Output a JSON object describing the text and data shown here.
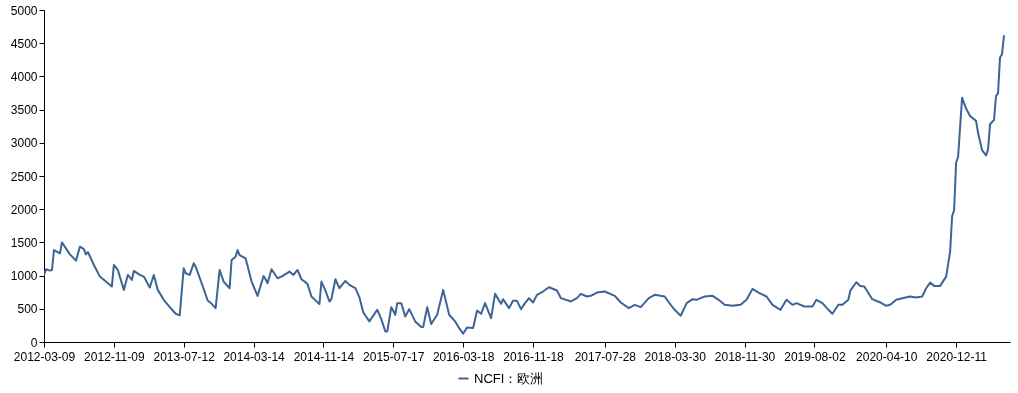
{
  "chart_data": {
    "type": "line",
    "legend": "bottom",
    "x": [
      "2012-03-09",
      "2012-03-16",
      "2012-03-30",
      "2012-04-06",
      "2012-04-13",
      "2012-05-04",
      "2012-05-11",
      "2012-05-25",
      "2012-06-08",
      "2012-06-29",
      "2012-07-13",
      "2012-07-27",
      "2012-08-03",
      "2012-08-10",
      "2012-08-31",
      "2012-09-21",
      "2012-10-12",
      "2012-11-02",
      "2012-11-09",
      "2012-11-23",
      "2012-12-14",
      "2012-12-28",
      "2013-01-11",
      "2013-01-18",
      "2013-02-08",
      "2013-02-22",
      "2013-03-15",
      "2013-03-29",
      "2013-04-12",
      "2013-05-03",
      "2013-05-24",
      "2013-06-14",
      "2013-06-28",
      "2013-07-12",
      "2013-07-19",
      "2013-08-02",
      "2013-08-16",
      "2013-08-23",
      "2013-09-13",
      "2013-10-04",
      "2013-10-18",
      "2013-11-01",
      "2013-11-15",
      "2013-11-29",
      "2013-12-20",
      "2013-12-27",
      "2014-01-10",
      "2014-01-17",
      "2014-01-24",
      "2014-02-14",
      "2014-03-07",
      "2014-03-28",
      "2014-04-18",
      "2014-04-25",
      "2014-05-02",
      "2014-05-16",
      "2014-06-06",
      "2014-06-20",
      "2014-07-18",
      "2014-08-01",
      "2014-08-15",
      "2014-08-29",
      "2014-09-19",
      "2014-10-03",
      "2014-10-31",
      "2014-11-07",
      "2014-11-21",
      "2014-12-05",
      "2014-12-12",
      "2014-12-26",
      "2015-01-09",
      "2015-01-30",
      "2015-02-13",
      "2015-03-06",
      "2015-03-20",
      "2015-04-03",
      "2015-04-24",
      "2015-05-22",
      "2015-06-05",
      "2015-06-19",
      "2015-06-26",
      "2015-07-10",
      "2015-07-24",
      "2015-07-31",
      "2015-08-14",
      "2015-08-28",
      "2015-09-11",
      "2015-10-02",
      "2015-10-23",
      "2015-10-30",
      "2015-11-13",
      "2015-11-27",
      "2015-12-18",
      "2016-01-08",
      "2016-01-29",
      "2016-02-19",
      "2016-03-04",
      "2016-03-18",
      "2016-04-01",
      "2016-04-22",
      "2016-05-06",
      "2016-05-20",
      "2016-06-03",
      "2016-06-24",
      "2016-07-08",
      "2016-07-29",
      "2016-08-05",
      "2016-08-26",
      "2016-09-09",
      "2016-09-23",
      "2016-10-07",
      "2016-10-21",
      "2016-11-04",
      "2016-11-18",
      "2016-12-02",
      "2016-12-23",
      "2017-01-13",
      "2017-02-10",
      "2017-02-24",
      "2017-03-31",
      "2017-04-21",
      "2017-05-05",
      "2017-05-26",
      "2017-06-09",
      "2017-06-30",
      "2017-07-28",
      "2017-09-01",
      "2017-09-22",
      "2017-10-20",
      "2017-11-10",
      "2017-12-01",
      "2017-12-29",
      "2018-01-19",
      "2018-02-23",
      "2018-03-16",
      "2018-03-30",
      "2018-04-20",
      "2018-05-11",
      "2018-06-01",
      "2018-06-15",
      "2018-06-29",
      "2018-07-13",
      "2018-08-10",
      "2018-08-31",
      "2018-09-21",
      "2018-10-19",
      "2018-11-16",
      "2018-12-07",
      "2018-12-28",
      "2019-01-18",
      "2019-02-15",
      "2019-03-08",
      "2019-04-05",
      "2019-04-26",
      "2019-05-17",
      "2019-05-31",
      "2019-06-28",
      "2019-07-26",
      "2019-08-09",
      "2019-08-30",
      "2019-09-20",
      "2019-10-04",
      "2019-10-25",
      "2019-11-08",
      "2019-11-29",
      "2019-12-06",
      "2019-12-27",
      "2020-01-10",
      "2020-01-24",
      "2020-02-21",
      "2020-03-20",
      "2020-04-10",
      "2020-04-24",
      "2020-05-15",
      "2020-06-05",
      "2020-07-03",
      "2020-07-24",
      "2020-08-14",
      "2020-08-28",
      "2020-09-11",
      "2020-09-25",
      "2020-10-16",
      "2020-11-06",
      "2020-11-20",
      "2020-11-27",
      "2020-12-04",
      "2020-12-11",
      "2020-12-18",
      "2021-01-01",
      "2021-01-08",
      "2021-01-15",
      "2021-01-29",
      "2021-02-19",
      "2021-02-26",
      "2021-03-12",
      "2021-03-26",
      "2021-04-02",
      "2021-04-09",
      "2021-04-23",
      "2021-04-30",
      "2021-05-07",
      "2021-05-14",
      "2021-05-21",
      "2021-05-28"
    ],
    "series": [
      {
        "name": "NCFI：欧洲",
        "color": "#3c6496",
        "values": [
          1010,
          1095,
          1075,
          1085,
          1385,
          1335,
          1500,
          1410,
          1320,
          1225,
          1435,
          1400,
          1320,
          1355,
          1160,
          985,
          910,
          835,
          1160,
          1085,
          785,
          1010,
          935,
          1070,
          1010,
          985,
          820,
          1010,
          785,
          635,
          525,
          425,
          400,
          1110,
          1035,
          1010,
          1185,
          1135,
          885,
          625,
          575,
          510,
          1085,
          910,
          810,
          1235,
          1285,
          1385,
          1310,
          1260,
          910,
          695,
          995,
          945,
          885,
          1095,
          960,
          985,
          1060,
          1010,
          1085,
          945,
          875,
          685,
          570,
          910,
          775,
          610,
          645,
          945,
          810,
          920,
          860,
          810,
          675,
          445,
          310,
          485,
          345,
          160,
          160,
          525,
          410,
          585,
          585,
          385,
          495,
          310,
          225,
          225,
          525,
          270,
          410,
          785,
          410,
          310,
          210,
          125,
          220,
          210,
          475,
          425,
          585,
          360,
          725,
          575,
          645,
          510,
          620,
          620,
          495,
          585,
          660,
          595,
          710,
          760,
          825,
          775,
          660,
          610,
          660,
          725,
          685,
          695,
          745,
          760,
          695,
          595,
          510,
          560,
          525,
          660,
          710,
          685,
          560,
          485,
          395,
          585,
          645,
          635,
          660,
          685,
          695,
          635,
          560,
          545,
          560,
          635,
          800,
          745,
          685,
          560,
          485,
          635,
          560,
          585,
          535,
          535,
          635,
          585,
          485,
          425,
          560,
          560,
          635,
          775,
          900,
          845,
          835,
          645,
          595,
          545,
          560,
          635,
          660,
          685,
          670,
          685,
          810,
          895,
          845,
          845,
          985,
          1360,
          1895,
          1985,
          2700,
          2790,
          3680,
          3595,
          3515,
          3405,
          3330,
          3150,
          2890,
          2810,
          2900,
          3280,
          3345,
          3705,
          3745,
          4285,
          4335,
          4620
        ]
      }
    ],
    "xlim": [
      "2012-03-09",
      "2021-06-18"
    ],
    "xticks": [
      "2012-03-09",
      "2012-11-09",
      "2013-07-12",
      "2014-03-14",
      "2014-11-14",
      "2015-07-17",
      "2016-03-18",
      "2016-11-18",
      "2017-07-28",
      "2018-03-30",
      "2018-11-30",
      "2019-08-02",
      "2020-04-10",
      "2020-12-11"
    ],
    "ylim": [
      0,
      5000
    ],
    "yticks": [
      0,
      500,
      1000,
      1500,
      2000,
      2500,
      3000,
      3500,
      4000,
      4500,
      5000
    ]
  }
}
